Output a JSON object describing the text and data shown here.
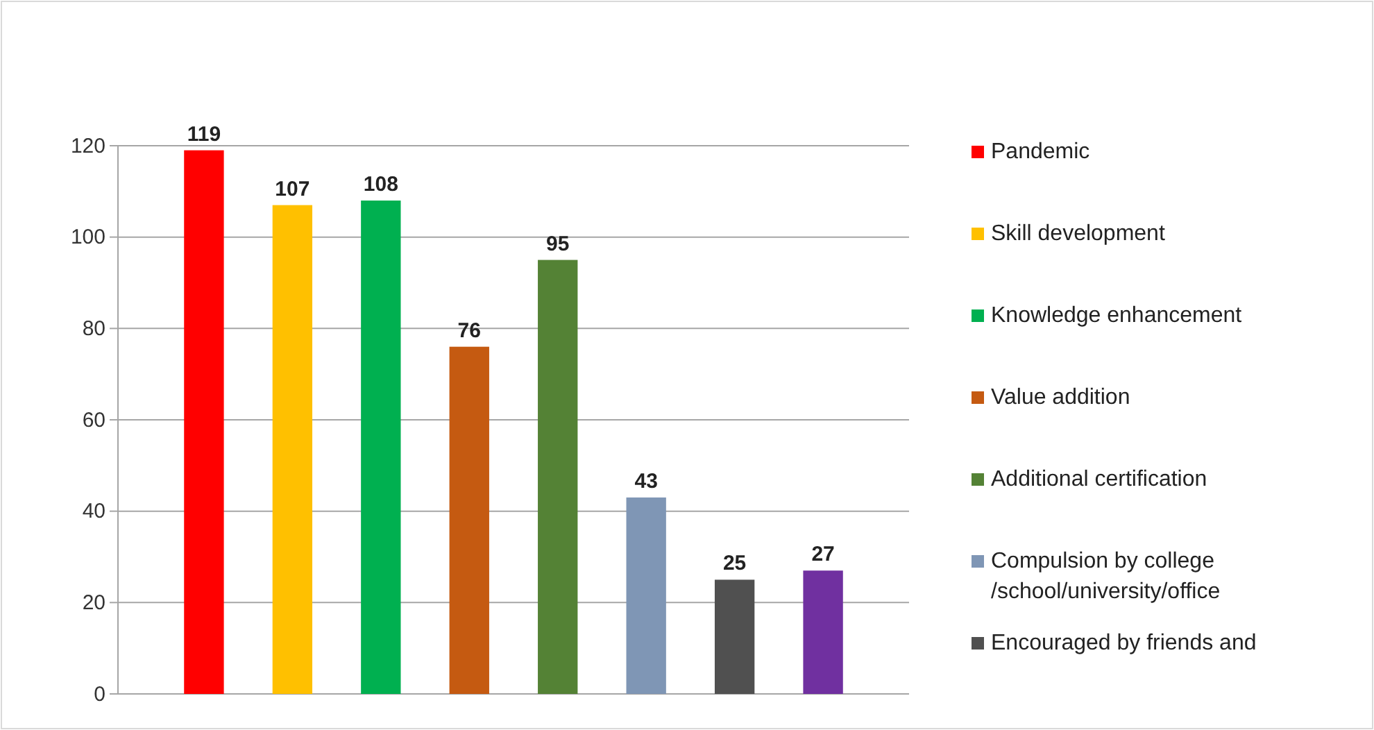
{
  "chart_data": {
    "type": "bar",
    "categories": [
      null
    ],
    "series": [
      {
        "name": "Pandemic",
        "color": "#ff0000",
        "values": [
          119
        ]
      },
      {
        "name": "Skill development",
        "color": "#ffc000",
        "values": [
          107
        ]
      },
      {
        "name": "Knowledge enhancement",
        "color": "#00b050",
        "values": [
          108
        ]
      },
      {
        "name": "Value addition",
        "color": "#c55a11",
        "values": [
          76
        ]
      },
      {
        "name": "Additional certification",
        "color": "#548235",
        "values": [
          95
        ]
      },
      {
        "name": "Compulsion by college /school/university/office",
        "color": "#7f96b5",
        "values": [
          43
        ]
      },
      {
        "name": "Encouraged by friends and",
        "color": "#505050",
        "values": [
          25
        ]
      },
      {
        "color": "#7030a0",
        "values": [
          27
        ]
      }
    ],
    "ylim": [
      0,
      120
    ],
    "yticks": [
      0,
      20,
      40,
      60,
      80,
      100,
      120
    ],
    "grid": "y",
    "legend": "right",
    "data_labels": true
  }
}
